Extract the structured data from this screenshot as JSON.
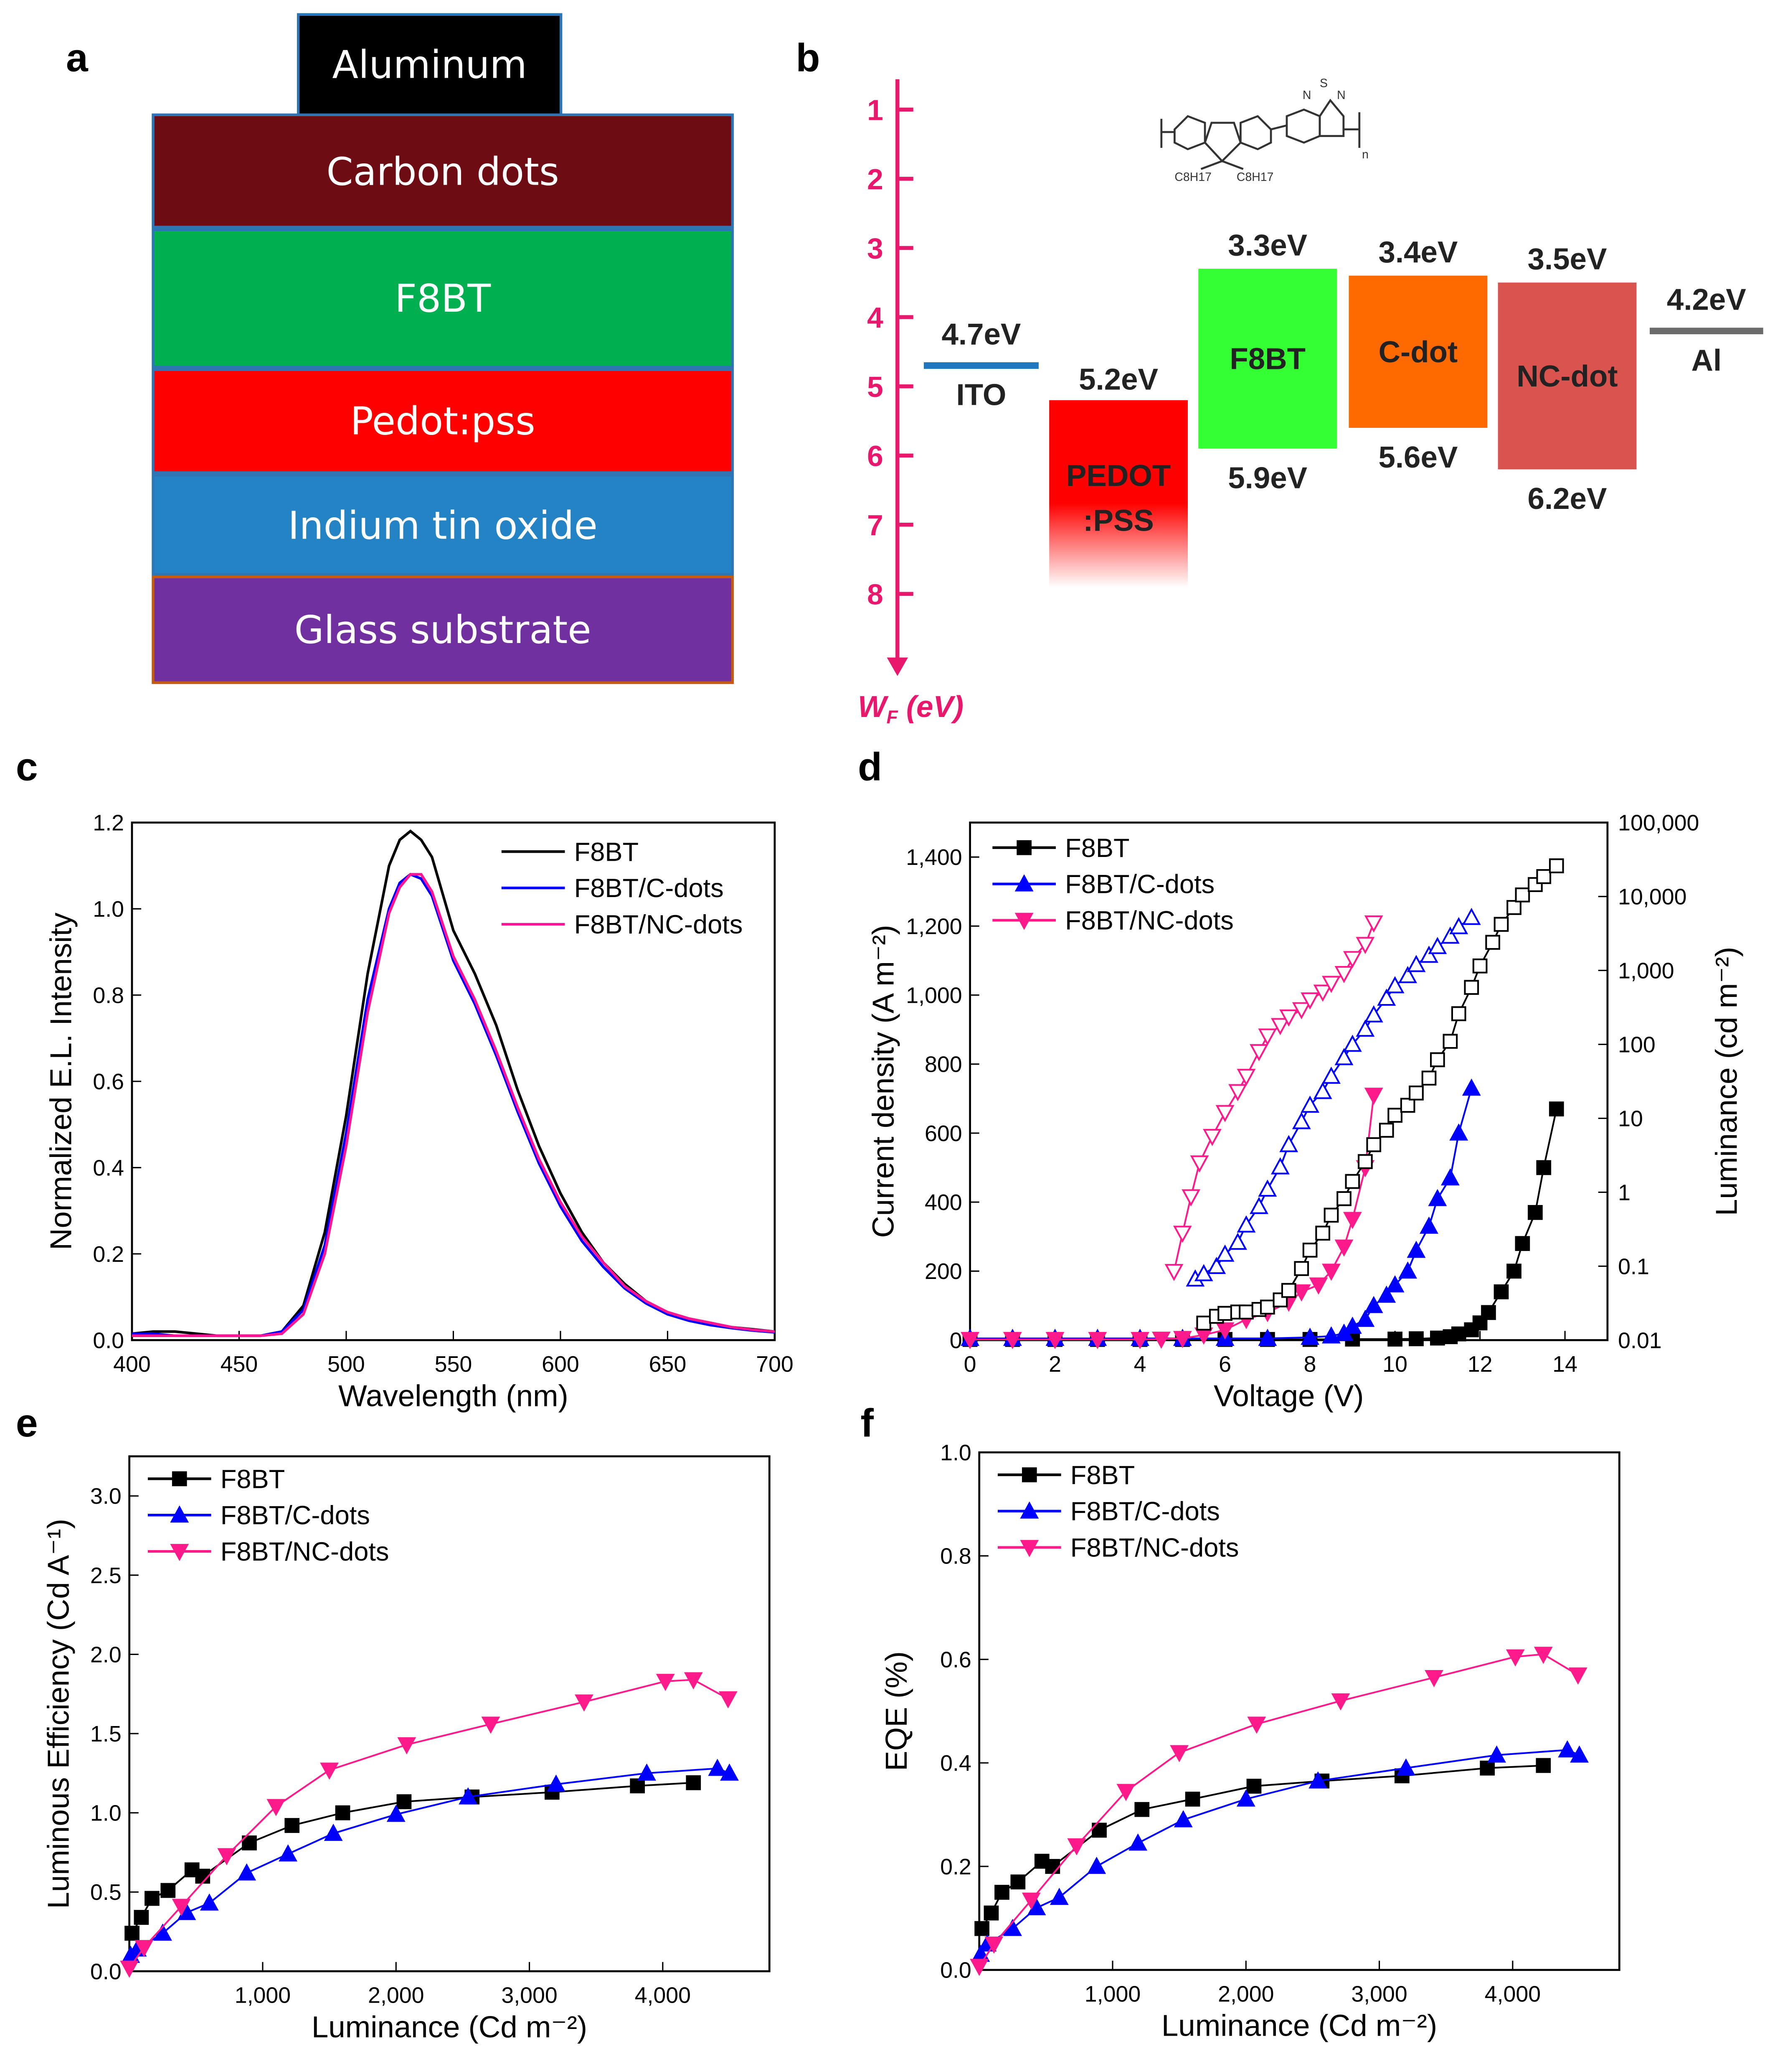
{
  "panel_labels": [
    "a",
    "b",
    "c",
    "d",
    "e",
    "f"
  ],
  "device_stack": {
    "layers": [
      {
        "label": "Aluminum",
        "color": "#000000"
      },
      {
        "label": "Carbon dots",
        "color": "#6e0c14"
      },
      {
        "label": "F8BT",
        "color": "#00b050"
      },
      {
        "label": "Pedot:pss",
        "color": "#ff0000"
      },
      {
        "label": "Indium tin oxide",
        "color": "#2383c4"
      },
      {
        "label": "Glass substrate",
        "color": "#7030a0"
      }
    ]
  },
  "energy_diagram": {
    "axis_label": "W",
    "axis_label_sub": "F",
    "axis_unit": " (eV)",
    "axis_ticks": [
      "1",
      "2",
      "3",
      "4",
      "5",
      "6",
      "7",
      "8"
    ],
    "axis_color": "#e8186d",
    "structure_labels": {
      "sub1": "C8H17",
      "sub2": "C8H17",
      "n1": "N",
      "s": "S",
      "n2": "N",
      "repeat": "n"
    },
    "levels": [
      {
        "name": "ITO",
        "type": "line",
        "value": 4.7,
        "top_label": "4.7eV",
        "color": "#1f77c0"
      },
      {
        "name": "PEDOT\n:PSS",
        "name1": "PEDOT",
        "name2": ":PSS",
        "type": "box",
        "top": 5.2,
        "top_label": "5.2eV",
        "color": "#ff0000"
      },
      {
        "name": "F8BT",
        "type": "box",
        "top": 3.3,
        "bottom": 5.9,
        "top_label": "3.3eV",
        "bottom_label": "5.9eV",
        "color": "#33ff33"
      },
      {
        "name": "C-dot",
        "type": "box",
        "top": 3.4,
        "bottom": 5.6,
        "top_label": "3.4eV",
        "bottom_label": "5.6eV",
        "color": "#ff6a00"
      },
      {
        "name": "NC-dot",
        "type": "box",
        "top": 3.5,
        "bottom": 6.2,
        "top_label": "3.5eV",
        "bottom_label": "6.2eV",
        "color": "#d9534f"
      },
      {
        "name": "Al",
        "type": "line",
        "value": 4.2,
        "top_label": "4.2eV",
        "color": "#6b6b6b"
      }
    ]
  },
  "chart_data": [
    {
      "panel": "c",
      "type": "line",
      "xlabel": "Wavelength (nm)",
      "ylabel": "Normalized E.L. Intensity",
      "xlim": [
        400,
        700
      ],
      "ylim": [
        0,
        1.2
      ],
      "xticks": [
        400,
        450,
        500,
        550,
        600,
        650,
        700
      ],
      "xtick_labels": [
        "400",
        "450",
        "500",
        "550",
        "600",
        "650",
        "700"
      ],
      "yticks": [
        0,
        0.2,
        0.4,
        0.6,
        0.8,
        1.0,
        1.2
      ],
      "ytick_labels": [
        "0.0",
        "0.2",
        "0.4",
        "0.6",
        "0.8",
        "1.0",
        "1.2"
      ],
      "legend": "top-right",
      "x": [
        400,
        410,
        420,
        430,
        440,
        450,
        460,
        470,
        480,
        490,
        500,
        510,
        520,
        525,
        530,
        535,
        540,
        550,
        560,
        570,
        580,
        590,
        600,
        610,
        620,
        630,
        640,
        650,
        660,
        670,
        680,
        690,
        700
      ],
      "series": [
        {
          "name": "F8BT",
          "color": "#000000",
          "values": [
            0.015,
            0.02,
            0.02,
            0.015,
            0.01,
            0.01,
            0.01,
            0.02,
            0.08,
            0.25,
            0.52,
            0.85,
            1.1,
            1.16,
            1.18,
            1.16,
            1.12,
            0.95,
            0.85,
            0.73,
            0.58,
            0.45,
            0.34,
            0.25,
            0.18,
            0.13,
            0.09,
            0.065,
            0.05,
            0.04,
            0.03,
            0.025,
            0.02
          ]
        },
        {
          "name": "F8BT/C-dots",
          "color": "#0000ff",
          "values": [
            0.015,
            0.015,
            0.01,
            0.01,
            0.01,
            0.01,
            0.01,
            0.02,
            0.07,
            0.22,
            0.48,
            0.79,
            1.0,
            1.06,
            1.08,
            1.07,
            1.03,
            0.88,
            0.78,
            0.66,
            0.53,
            0.41,
            0.31,
            0.23,
            0.17,
            0.12,
            0.085,
            0.06,
            0.045,
            0.035,
            0.028,
            0.022,
            0.018
          ]
        },
        {
          "name": "F8BT/NC-dots",
          "color": "#ff1493",
          "values": [
            0.01,
            0.01,
            0.01,
            0.01,
            0.01,
            0.01,
            0.01,
            0.015,
            0.06,
            0.2,
            0.45,
            0.76,
            0.99,
            1.05,
            1.08,
            1.08,
            1.04,
            0.89,
            0.79,
            0.67,
            0.54,
            0.42,
            0.32,
            0.24,
            0.18,
            0.125,
            0.09,
            0.065,
            0.05,
            0.04,
            0.03,
            0.024,
            0.02
          ]
        }
      ]
    },
    {
      "panel": "d",
      "type": "scatter",
      "xlabel": "Voltage (V)",
      "ylabel": "Current density (A m⁻²)",
      "y2label": "Luminance (cd m⁻²)",
      "xlim": [
        0,
        15
      ],
      "ylim": [
        0,
        1500
      ],
      "y2lim": [
        0.01,
        100000
      ],
      "y2scale": "log",
      "xticks": [
        0,
        2,
        4,
        6,
        8,
        10,
        12,
        14
      ],
      "xtick_labels": [
        "0",
        "2",
        "4",
        "6",
        "8",
        "10",
        "12",
        "14"
      ],
      "yticks": [
        0,
        200,
        400,
        600,
        800,
        1000,
        1200,
        1400
      ],
      "ytick_labels": [
        "0",
        "200",
        "400",
        "600",
        "800",
        "1,000",
        "1,200",
        "1,400"
      ],
      "y2ticks": [
        0.01,
        0.1,
        1,
        10,
        100,
        1000,
        10000,
        100000
      ],
      "y2tick_labels": [
        "0.01",
        "0.1",
        "1",
        "10",
        "100",
        "1,000",
        "10,000",
        "100,000"
      ],
      "legend": "top-left",
      "series": [
        {
          "name": "F8BT",
          "color": "#000000",
          "marker": "square",
          "axis": "left",
          "fill": true,
          "x": [
            0,
            1,
            2,
            3,
            4,
            5,
            6,
            7,
            8,
            9,
            10,
            10.5,
            11,
            11.3,
            11.5,
            11.8,
            12,
            12.2,
            12.5,
            12.8,
            13,
            13.3,
            13.5,
            13.8
          ],
          "values": [
            2,
            2,
            2,
            2,
            2,
            2,
            2,
            2,
            2,
            3,
            3,
            4,
            6,
            10,
            18,
            30,
            50,
            80,
            140,
            200,
            280,
            370,
            500,
            670
          ]
        },
        {
          "name": "F8BT/C-dots",
          "color": "#0000ff",
          "marker": "triangle-up",
          "axis": "left",
          "fill": true,
          "x": [
            0,
            1,
            2,
            3,
            4,
            5,
            6,
            7,
            8,
            8.5,
            8.8,
            9,
            9.3,
            9.5,
            9.8,
            10,
            10.3,
            10.5,
            10.8,
            11,
            11.3,
            11.5,
            11.8
          ],
          "values": [
            5,
            5,
            5,
            5,
            5,
            5,
            5,
            5,
            8,
            12,
            20,
            40,
            60,
            100,
            130,
            160,
            200,
            260,
            330,
            410,
            470,
            600,
            730
          ]
        },
        {
          "name": "F8BT/NC-dots",
          "color": "#ff1a8c",
          "marker": "triangle-down",
          "axis": "left",
          "fill": true,
          "x": [
            0,
            1,
            2,
            3,
            4,
            4.5,
            5,
            5.5,
            6,
            6.5,
            7,
            7.5,
            7.8,
            8.2,
            8.5,
            8.8,
            9,
            9.3,
            9.5
          ],
          "values": [
            2,
            2,
            2,
            2,
            2,
            3,
            5,
            15,
            30,
            60,
            80,
            110,
            140,
            160,
            200,
            270,
            350,
            500,
            710
          ]
        },
        {
          "color": "#000000",
          "marker": "square",
          "axis": "right",
          "fill": false,
          "x": [
            5.5,
            5.8,
            6,
            6.3,
            6.5,
            6.8,
            7,
            7.3,
            7.5,
            7.8,
            8,
            8.3,
            8.5,
            8.8,
            9,
            9.3,
            9.5,
            9.8,
            10,
            10.3,
            10.5,
            10.8,
            11,
            11.3,
            11.5,
            11.8,
            12,
            12.3,
            12.5,
            12.8,
            13,
            13.3,
            13.5,
            13.8
          ],
          "values": [
            0.017,
            0.021,
            0.023,
            0.024,
            0.024,
            0.026,
            0.028,
            0.035,
            0.047,
            0.093,
            0.165,
            0.28,
            0.49,
            0.82,
            1.4,
            2.6,
            4.4,
            6.9,
            11,
            15,
            22,
            35,
            62,
            110,
            260,
            590,
            1150,
            2400,
            4200,
            7100,
            10500,
            14500,
            18600,
            26000
          ]
        },
        {
          "color": "#0000ff",
          "marker": "triangle-up",
          "axis": "right",
          "fill": false,
          "x": [
            5.3,
            5.5,
            5.8,
            6,
            6.3,
            6.5,
            6.8,
            7,
            7.3,
            7.5,
            7.8,
            8,
            8.3,
            8.5,
            8.8,
            9,
            9.3,
            9.5,
            9.8,
            10,
            10.3,
            10.5,
            10.8,
            11,
            11.3,
            11.5,
            11.8
          ],
          "values": [
            0.067,
            0.079,
            0.099,
            0.145,
            0.21,
            0.36,
            0.64,
            1.1,
            2.2,
            4.4,
            9,
            15,
            23,
            37,
            66,
            100,
            160,
            250,
            420,
            620,
            850,
            1200,
            1600,
            2100,
            2900,
            3900,
            5200
          ]
        },
        {
          "color": "#ff1a8c",
          "marker": "triangle-down",
          "axis": "right",
          "fill": false,
          "x": [
            4.8,
            5,
            5.2,
            5.4,
            5.7,
            6,
            6.3,
            6.5,
            6.8,
            7,
            7.3,
            7.5,
            7.8,
            8,
            8.3,
            8.5,
            8.8,
            9,
            9.3,
            9.5
          ],
          "values": [
            0.085,
            0.28,
            0.87,
            2.5,
            5.7,
            12,
            23,
            37,
            80,
            130,
            180,
            235,
            295,
            400,
            510,
            670,
            910,
            1450,
            2250,
            4400
          ]
        }
      ]
    },
    {
      "panel": "e",
      "type": "line",
      "xlabel": "Luminance (Cd m⁻²)",
      "ylabel": "Luminous Efficiency (Cd A⁻¹)",
      "xlim": [
        0,
        4800
      ],
      "ylim": [
        0,
        3.25
      ],
      "xticks": [
        1000,
        2000,
        3000,
        4000
      ],
      "xtick_labels": [
        "1,000",
        "2,000",
        "3,000",
        "4,000"
      ],
      "yticks": [
        0,
        0.5,
        1.0,
        1.5,
        2.0,
        2.5,
        3.0
      ],
      "ytick_labels": [
        "0.0",
        "0.5",
        "1.0",
        "1.5",
        "2.0",
        "2.5",
        "3.0"
      ],
      "legend": "top-left",
      "series": [
        {
          "name": "F8BT",
          "color": "#000000",
          "marker": "square",
          "x": [
            20,
            90,
            170,
            290,
            470,
            550,
            900,
            1220,
            1600,
            2060,
            2570,
            3170,
            3810,
            4230
          ],
          "values": [
            0.24,
            0.34,
            0.46,
            0.51,
            0.64,
            0.6,
            0.81,
            0.92,
            1.0,
            1.07,
            1.1,
            1.13,
            1.17,
            1.19
          ]
        },
        {
          "name": "F8BT/C-dots",
          "color": "#0000ff",
          "marker": "triangle-up",
          "x": [
            10,
            60,
            250,
            430,
            600,
            880,
            1190,
            1530,
            2000,
            2540,
            3200,
            3880,
            4410,
            4500
          ],
          "values": [
            0.1,
            0.14,
            0.24,
            0.37,
            0.43,
            0.62,
            0.74,
            0.87,
            0.99,
            1.1,
            1.18,
            1.25,
            1.28,
            1.25
          ]
        },
        {
          "name": "F8BT/NC-dots",
          "color": "#ff1a8c",
          "marker": "triangle-down",
          "x": [
            0,
            110,
            390,
            730,
            1100,
            1500,
            2080,
            2710,
            3410,
            4020,
            4230,
            4490
          ],
          "values": [
            0.02,
            0.15,
            0.41,
            0.73,
            1.04,
            1.27,
            1.43,
            1.56,
            1.7,
            1.83,
            1.84,
            1.72
          ]
        }
      ]
    },
    {
      "panel": "f",
      "type": "line",
      "xlabel": "Luminance (Cd m⁻²)",
      "ylabel": "EQE (%)",
      "xlim": [
        0,
        4800
      ],
      "ylim": [
        0,
        1.0
      ],
      "xticks": [
        1000,
        2000,
        3000,
        4000
      ],
      "xtick_labels": [
        "1,000",
        "2,000",
        "3,000",
        "4,000"
      ],
      "yticks": [
        0,
        0.2,
        0.4,
        0.6,
        0.8,
        1.0
      ],
      "ytick_labels": [
        "0.0",
        "0.2",
        "0.4",
        "0.6",
        "0.8",
        "1.0"
      ],
      "legend": "top-left",
      "series": [
        {
          "name": "F8BT",
          "color": "#000000",
          "marker": "square",
          "x": [
            20,
            90,
            170,
            290,
            470,
            550,
            900,
            1220,
            1600,
            2060,
            2570,
            3170,
            3810,
            4230
          ],
          "values": [
            0.08,
            0.11,
            0.15,
            0.17,
            0.21,
            0.2,
            0.27,
            0.31,
            0.33,
            0.355,
            0.365,
            0.375,
            0.39,
            0.395
          ]
        },
        {
          "name": "F8BT/C-dots",
          "color": "#0000ff",
          "marker": "triangle-up",
          "x": [
            10,
            60,
            250,
            430,
            600,
            880,
            1190,
            1530,
            2000,
            2540,
            3200,
            3880,
            4410,
            4500
          ],
          "values": [
            0.03,
            0.05,
            0.08,
            0.12,
            0.14,
            0.2,
            0.245,
            0.29,
            0.33,
            0.365,
            0.39,
            0.415,
            0.425,
            0.415
          ]
        },
        {
          "name": "F8BT/NC-dots",
          "color": "#ff1a8c",
          "marker": "triangle-down",
          "x": [
            0,
            110,
            390,
            730,
            1100,
            1500,
            2080,
            2710,
            3410,
            4020,
            4230,
            4490
          ],
          "values": [
            0.007,
            0.05,
            0.135,
            0.24,
            0.345,
            0.42,
            0.475,
            0.52,
            0.565,
            0.605,
            0.61,
            0.57
          ]
        }
      ]
    }
  ]
}
